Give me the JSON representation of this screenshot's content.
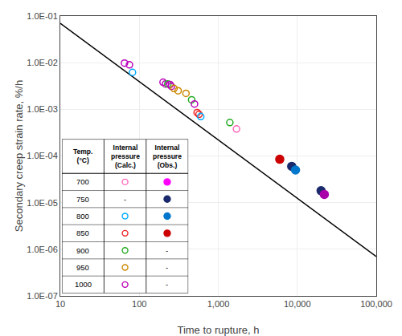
{
  "chart_data": {
    "type": "scatter",
    "xlabel": "Time to rupture, h",
    "ylabel": "Secondary creep strain rate, %/h",
    "log": true,
    "grid": true,
    "xlim": [
      10,
      100000
    ],
    "ylim": [
      1e-07,
      0.1
    ],
    "xticks": [
      10,
      100,
      {
        "value": 1000,
        "label": "1,000"
      },
      {
        "value": 10000,
        "label": "10,000"
      },
      {
        "value": 100000,
        "label": "100,000"
      }
    ],
    "yticks": [
      {
        "value": 1e-07,
        "label": "1.0E-07"
      },
      {
        "value": 1e-06,
        "label": "1.0E-06"
      },
      {
        "value": 1e-05,
        "label": "1.0E-05"
      },
      {
        "value": 0.0001,
        "label": "1.0E-04"
      },
      {
        "value": 0.001,
        "label": "1.0E-03"
      },
      {
        "value": 0.01,
        "label": "1.0E-02"
      },
      {
        "value": 0.1,
        "label": "1.0E-01"
      }
    ],
    "series": [
      {
        "type": "line",
        "line_style": "solid",
        "color": "#000000",
        "x": [
          10,
          100000
        ],
        "values": [
          0.0699842,
          6.99842e-07
        ]
      },
      {
        "type": "scatter",
        "marker": "circle-open",
        "x": [
          65,
          75,
          82,
          200,
          215,
          230,
          245,
          255,
          275,
          310,
          390,
          460,
          500,
          540,
          570,
          600,
          1400,
          1700
        ],
        "values": [
          0.0098,
          0.009,
          0.0062,
          0.0038,
          0.0035,
          0.0035,
          0.0034,
          0.0031,
          0.0028,
          0.0025,
          0.0022,
          0.0016,
          0.0013,
          0.00085,
          0.00078,
          0.0007,
          0.00052,
          0.00038
        ],
        "colors": [
          "#bb00bb",
          "#bb00bb",
          "#00aaff",
          "#bb00bb",
          "#bb00bb",
          "#22aa22",
          "#bb00bb",
          "#bb00bb",
          "#cc8800",
          "#cc8800",
          "#cc8800",
          "#22aa22",
          "#bb00bb",
          "#ee2222",
          "#ee2222",
          "#00aaff",
          "#22aa22",
          "#ff66bb"
        ]
      },
      {
        "type": "scatter",
        "marker": "circle",
        "x": [
          6000,
          8500,
          9500,
          20000,
          22000
        ],
        "values": [
          8.5e-05,
          6e-05,
          5e-05,
          1.8e-05,
          1.5e-05
        ],
        "colors": [
          "#cc0000",
          "#1a2a6c",
          "#0077cc",
          "#1a2a6c",
          "#aa00aa"
        ]
      }
    ],
    "legend_table": {
      "headers": [
        "Temp.\n(°C)",
        "Internal\npressure\n(Calc.)",
        "Internal\npressure\n(Obs.)"
      ],
      "missing_mark": "-",
      "calc_marker": "circle-open",
      "obs_marker": "circle",
      "rows": [
        {
          "temp": "700",
          "calc_color": "#ff66bb",
          "obs_color": "#ff00ff"
        },
        {
          "temp": "750",
          "calc_color": null,
          "obs_color": "#1a2a6c"
        },
        {
          "temp": "800",
          "calc_color": "#00aaff",
          "obs_color": "#0077cc"
        },
        {
          "temp": "850",
          "calc_color": "#ee2222",
          "obs_color": "#cc0000"
        },
        {
          "temp": "900",
          "calc_color": "#22aa22",
          "obs_color": null
        },
        {
          "temp": "950",
          "calc_color": "#cc8800",
          "obs_color": null
        },
        {
          "temp": "1000",
          "calc_color": "#bb00bb",
          "obs_color": null
        }
      ]
    }
  }
}
